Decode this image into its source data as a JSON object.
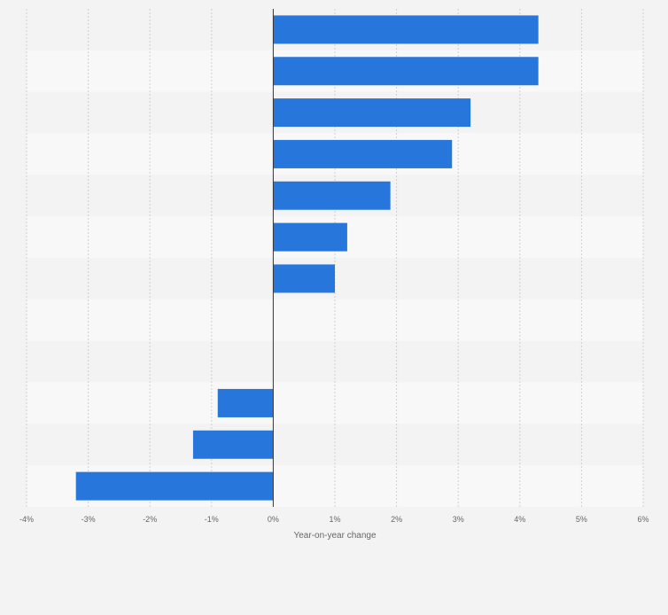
{
  "chart_data": {
    "type": "bar",
    "orientation": "horizontal",
    "title": "",
    "xlabel": "Year-on-year change",
    "ylabel": "",
    "x_tick_labels": [
      "-4%",
      "-3%",
      "-2%",
      "-1%",
      "0%",
      "1%",
      "2%",
      "3%",
      "4%",
      "5%",
      "6%"
    ],
    "xlim": [
      -4,
      6
    ],
    "grid": true,
    "legend": "none",
    "categories": [
      "",
      "",
      "",
      "",
      "",
      "",
      "",
      "",
      "",
      "",
      "",
      ""
    ],
    "values": [
      4.3,
      4.3,
      3.2,
      2.9,
      1.9,
      1.2,
      1.0,
      0,
      0,
      -0.9,
      -1.3,
      -3.2
    ],
    "bar_color": "#2776db",
    "band_colors": [
      "#f3f3f3",
      "#f8f8f8"
    ]
  }
}
